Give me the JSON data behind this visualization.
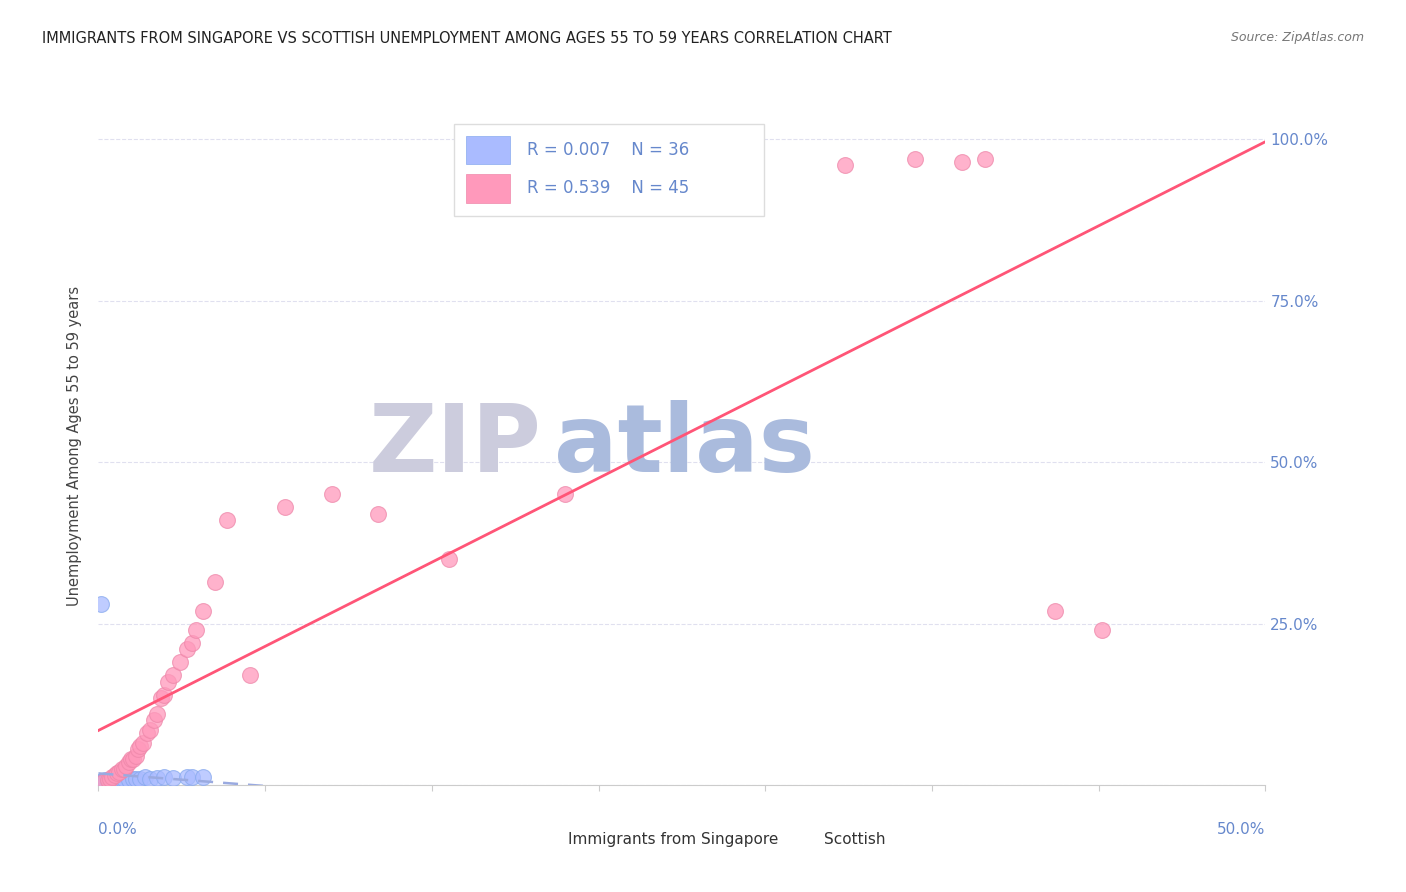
{
  "title": "IMMIGRANTS FROM SINGAPORE VS SCOTTISH UNEMPLOYMENT AMONG AGES 55 TO 59 YEARS CORRELATION CHART",
  "source": "Source: ZipAtlas.com",
  "ylabel": "Unemployment Among Ages 55 to 59 years",
  "legend1_label": "Immigrants from Singapore",
  "legend2_label": "Scottish",
  "R1": "0.007",
  "N1": "36",
  "R2": "0.539",
  "N2": "45",
  "color_blue": "#AABBFF",
  "color_blue_edge": "#88AAEE",
  "color_blue_line": "#9AAAE0",
  "color_pink": "#FF99BB",
  "color_pink_edge": "#EE88AA",
  "color_pink_line": "#FF5577",
  "color_axis_text": "#6688CC",
  "watermark_zip_color": "#CCCCDD",
  "watermark_atlas_color": "#AABBDD",
  "singapore_x": [
    0.0005,
    0.0006,
    0.0007,
    0.0008,
    0.001,
    0.001,
    0.001,
    0.001,
    0.0012,
    0.0015,
    0.002,
    0.002,
    0.003,
    0.003,
    0.004,
    0.005,
    0.005,
    0.006,
    0.007,
    0.008,
    0.009,
    0.01,
    0.011,
    0.013,
    0.015,
    0.016,
    0.018,
    0.02,
    0.022,
    0.025,
    0.028,
    0.032,
    0.038,
    0.04,
    0.045,
    0.001
  ],
  "singapore_y": [
    0.003,
    0.002,
    0.003,
    0.004,
    0.005,
    0.004,
    0.003,
    0.002,
    0.004,
    0.005,
    0.006,
    0.004,
    0.007,
    0.005,
    0.006,
    0.008,
    0.006,
    0.007,
    0.008,
    0.009,
    0.008,
    0.01,
    0.009,
    0.008,
    0.01,
    0.009,
    0.01,
    0.012,
    0.01,
    0.011,
    0.012,
    0.011,
    0.012,
    0.013,
    0.012,
    0.28
  ],
  "scottish_x": [
    0.002,
    0.004,
    0.005,
    0.006,
    0.007,
    0.008,
    0.009,
    0.01,
    0.011,
    0.012,
    0.013,
    0.014,
    0.015,
    0.016,
    0.017,
    0.018,
    0.019,
    0.021,
    0.022,
    0.024,
    0.025,
    0.027,
    0.028,
    0.03,
    0.032,
    0.035,
    0.038,
    0.04,
    0.042,
    0.045,
    0.05,
    0.055,
    0.065,
    0.08,
    0.1,
    0.12,
    0.15,
    0.2,
    0.25,
    0.32,
    0.35,
    0.37,
    0.38,
    0.41,
    0.43
  ],
  "scottish_y": [
    0.005,
    0.008,
    0.01,
    0.012,
    0.015,
    0.018,
    0.02,
    0.025,
    0.025,
    0.03,
    0.035,
    0.04,
    0.04,
    0.045,
    0.055,
    0.06,
    0.065,
    0.08,
    0.085,
    0.1,
    0.11,
    0.135,
    0.14,
    0.16,
    0.17,
    0.19,
    0.21,
    0.22,
    0.24,
    0.27,
    0.315,
    0.41,
    0.17,
    0.43,
    0.45,
    0.42,
    0.35,
    0.45,
    0.97,
    0.96,
    0.97,
    0.965,
    0.97,
    0.27,
    0.24
  ],
  "xlim": [
    0,
    0.5
  ],
  "ylim": [
    0,
    1.05
  ],
  "marker_size": 130
}
